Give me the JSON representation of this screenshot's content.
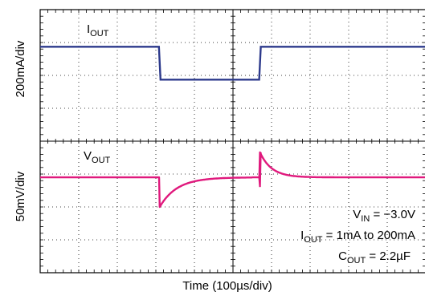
{
  "chart_data": {
    "type": "line",
    "x_label": "Time (100µs/div)",
    "x_unit_per_div": "100µs",
    "x_divisions": 10,
    "y_divisions": 8,
    "grid": "dotted",
    "panels": [
      {
        "name": "I_OUT",
        "label_main": "I",
        "label_sub": "OUT",
        "ylabel": "200mA/div",
        "color": "#2d3a8c",
        "unit": "mA",
        "points": [
          [
            0,
            0
          ],
          [
            3.08,
            0
          ],
          [
            3.12,
            -200
          ],
          [
            5.68,
            -200
          ],
          [
            5.72,
            0
          ],
          [
            10,
            0
          ]
        ]
      },
      {
        "name": "V_OUT",
        "label_main": "V",
        "label_sub": "OUT",
        "ylabel": "50mV/div",
        "color": "#e0197d",
        "unit": "mV",
        "baseline_div": 5.1,
        "events": [
          {
            "t": 3.1,
            "peak_mV": -45,
            "tau_div": 0.45,
            "recover_div": 2.4
          },
          {
            "t": 5.7,
            "peak_mV": 38,
            "tau_div": 0.3,
            "recover_div": 2.6
          }
        ]
      }
    ],
    "annotations": [
      {
        "main": "V",
        "sub": "IN",
        "rest": " = −3.0V"
      },
      {
        "main": "I",
        "sub": "OUT",
        "rest": " = 1mA to 200mA"
      },
      {
        "main": "C",
        "sub": "OUT",
        "rest": " = 2.2µF"
      }
    ]
  }
}
